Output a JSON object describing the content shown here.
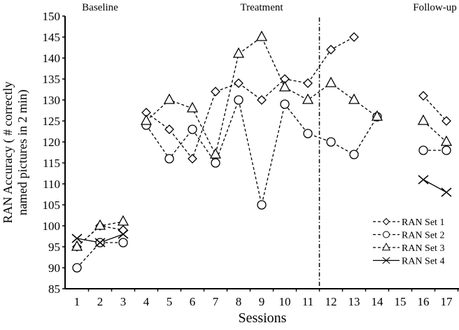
{
  "chart_data": {
    "type": "line",
    "title": "",
    "xlabel": "Sessions",
    "ylabel_lines": [
      "RAN Accuracy ( # correctly",
      "named pictures in 2 min)"
    ],
    "x": [
      1,
      2,
      3,
      4,
      5,
      6,
      7,
      8,
      9,
      10,
      11,
      12,
      13,
      14,
      15,
      16,
      17
    ],
    "x_tick_labels": [
      "1",
      "2",
      "3",
      "4",
      "5",
      "6",
      "7",
      "8",
      "9",
      "10",
      "11",
      "12",
      "13",
      "14",
      "15",
      "16",
      "17"
    ],
    "ylim": [
      85,
      150
    ],
    "y_ticks": [
      85,
      90,
      95,
      100,
      105,
      110,
      115,
      120,
      125,
      130,
      135,
      140,
      145,
      150
    ],
    "phase_labels": [
      {
        "text": "Baseline",
        "at_session": 2
      },
      {
        "text": "Treatment",
        "at_session": 9
      },
      {
        "text": "Follow-up",
        "at_session": 16.5
      }
    ],
    "phase_divider_session": 11.5,
    "segments": [
      [
        1,
        3
      ],
      [
        4,
        14
      ],
      [
        16,
        17
      ]
    ],
    "series": [
      {
        "name": "RAN Set 1",
        "marker": "diamond",
        "line": "dashed",
        "values": [
          95,
          100,
          99,
          127,
          123,
          116,
          132,
          134,
          130,
          135,
          134,
          142,
          145,
          null,
          null,
          131,
          125
        ]
      },
      {
        "name": "RAN Set 2",
        "marker": "circle",
        "line": "dashed",
        "values": [
          90,
          96,
          96,
          124,
          116,
          123,
          115,
          130,
          105,
          129,
          122,
          120,
          117,
          126,
          null,
          118,
          118
        ]
      },
      {
        "name": "RAN Set 3",
        "marker": "triangle",
        "line": "dashed",
        "values": [
          95,
          100,
          101,
          125,
          130,
          128,
          117,
          141,
          145,
          133,
          130,
          134,
          130,
          126,
          null,
          125,
          120
        ]
      },
      {
        "name": "RAN Set 4",
        "marker": "x",
        "line": "solid",
        "values": [
          97,
          96,
          98,
          null,
          null,
          null,
          null,
          null,
          null,
          null,
          null,
          null,
          null,
          null,
          null,
          111,
          108
        ]
      }
    ],
    "legend_position": "bottom-right",
    "grid": false
  }
}
